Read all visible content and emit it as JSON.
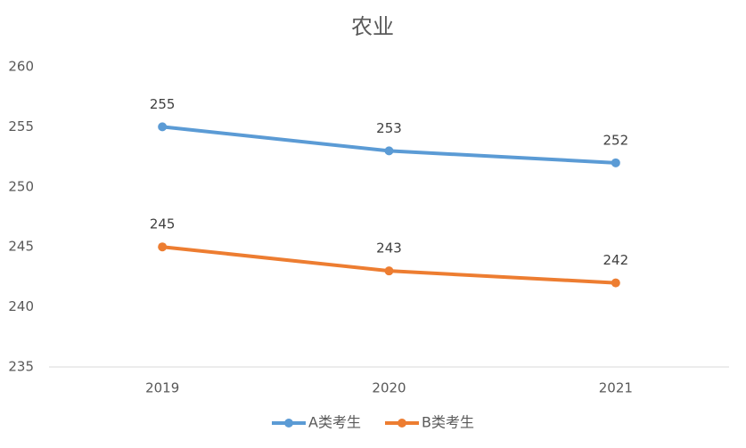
{
  "chart_data": {
    "type": "line",
    "title": "农业",
    "categories": [
      "2019",
      "2020",
      "2021"
    ],
    "series": [
      {
        "name": "A类考生",
        "color": "#5b9bd5",
        "values": [
          255,
          253,
          252
        ]
      },
      {
        "name": "B类考生",
        "color": "#ed7d31",
        "values": [
          245,
          243,
          242
        ]
      }
    ],
    "ylim": [
      235,
      260
    ],
    "yticks": [
      235,
      240,
      245,
      250,
      255,
      260
    ],
    "grid": false,
    "legend": "bottom"
  }
}
